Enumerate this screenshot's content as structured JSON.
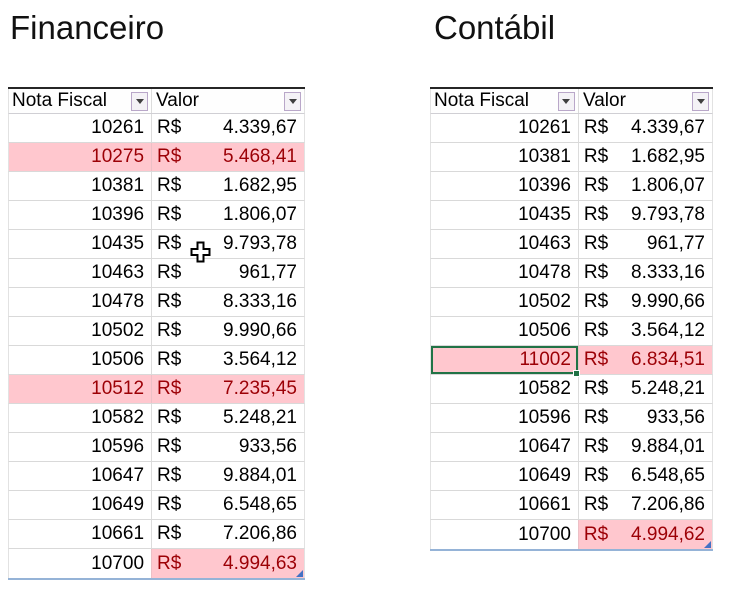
{
  "colors": {
    "highlight_fill": "#FFC7CE",
    "highlight_text": "#9C0006",
    "selection_border": "#217346",
    "resize_handle": "#4472C4",
    "table_bottom_border": "#95B3D7",
    "filter_button_border": "#B9A7C9"
  },
  "left_table": {
    "title": "Financeiro",
    "columns": [
      "Nota Fiscal",
      "Valor"
    ],
    "currency_symbol": "R$",
    "rows": [
      {
        "nota": "10261",
        "valor": "4.339,67",
        "highlight": "none"
      },
      {
        "nota": "10275",
        "valor": "5.468,41",
        "highlight": "row"
      },
      {
        "nota": "10381",
        "valor": "1.682,95",
        "highlight": "none"
      },
      {
        "nota": "10396",
        "valor": "1.806,07",
        "highlight": "none"
      },
      {
        "nota": "10435",
        "valor": "9.793,78",
        "highlight": "none"
      },
      {
        "nota": "10463",
        "valor": "961,77",
        "highlight": "none"
      },
      {
        "nota": "10478",
        "valor": "8.333,16",
        "highlight": "none"
      },
      {
        "nota": "10502",
        "valor": "9.990,66",
        "highlight": "none"
      },
      {
        "nota": "10506",
        "valor": "3.564,12",
        "highlight": "none"
      },
      {
        "nota": "10512",
        "valor": "7.235,45",
        "highlight": "row"
      },
      {
        "nota": "10582",
        "valor": "5.248,21",
        "highlight": "none"
      },
      {
        "nota": "10596",
        "valor": "933,56",
        "highlight": "none"
      },
      {
        "nota": "10647",
        "valor": "9.884,01",
        "highlight": "none"
      },
      {
        "nota": "10649",
        "valor": "6.548,65",
        "highlight": "none"
      },
      {
        "nota": "10661",
        "valor": "7.206,86",
        "highlight": "none"
      },
      {
        "nota": "10700",
        "valor": "4.994,63",
        "highlight": "valor"
      }
    ]
  },
  "right_table": {
    "title": "Contábil",
    "columns": [
      "Nota Fiscal",
      "Valor"
    ],
    "currency_symbol": "R$",
    "rows": [
      {
        "nota": "10261",
        "valor": "4.339,67",
        "highlight": "none"
      },
      {
        "nota": "10381",
        "valor": "1.682,95",
        "highlight": "none"
      },
      {
        "nota": "10396",
        "valor": "1.806,07",
        "highlight": "none"
      },
      {
        "nota": "10435",
        "valor": "9.793,78",
        "highlight": "none"
      },
      {
        "nota": "10463",
        "valor": "961,77",
        "highlight": "none"
      },
      {
        "nota": "10478",
        "valor": "8.333,16",
        "highlight": "none"
      },
      {
        "nota": "10502",
        "valor": "9.990,66",
        "highlight": "none"
      },
      {
        "nota": "10506",
        "valor": "3.564,12",
        "highlight": "none"
      },
      {
        "nota": "11002",
        "valor": "6.834,51",
        "highlight": "row",
        "selected": true
      },
      {
        "nota": "10582",
        "valor": "5.248,21",
        "highlight": "none"
      },
      {
        "nota": "10596",
        "valor": "933,56",
        "highlight": "none"
      },
      {
        "nota": "10647",
        "valor": "9.884,01",
        "highlight": "none"
      },
      {
        "nota": "10649",
        "valor": "6.548,65",
        "highlight": "none"
      },
      {
        "nota": "10661",
        "valor": "7.206,86",
        "highlight": "none"
      },
      {
        "nota": "10700",
        "valor": "4.994,62",
        "highlight": "valor"
      }
    ]
  }
}
